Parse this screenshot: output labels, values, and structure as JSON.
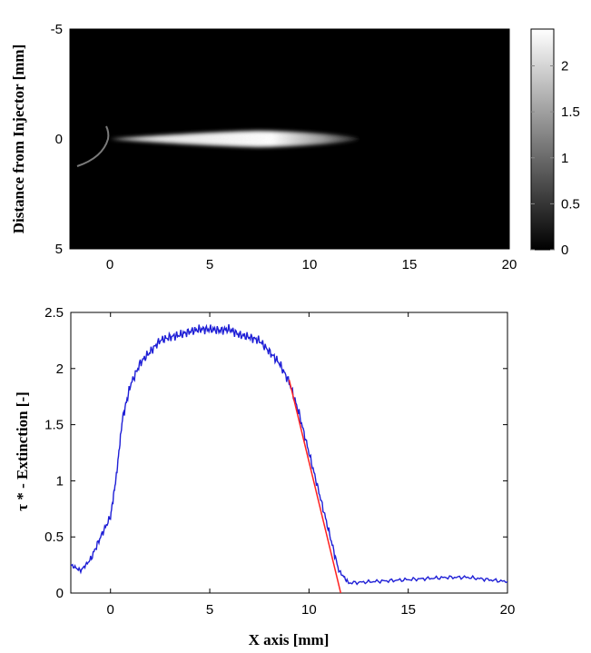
{
  "chart_data": [
    {
      "type": "heatmap",
      "title": "",
      "xlabel": "",
      "ylabel": "Distance from Injector [mm]",
      "xlim": [
        -2,
        20
      ],
      "ylim": [
        -5,
        5
      ],
      "y_reversed": true,
      "xticks": [
        "0",
        "5",
        "10",
        "15",
        "20"
      ],
      "xtick_values": [
        0,
        5,
        10,
        15,
        20
      ],
      "yticks": [
        "-5",
        "0",
        "5"
      ],
      "ytick_values": [
        -5,
        0,
        5
      ],
      "colorbar": {
        "ticks": [
          "0",
          "0.5",
          "1",
          "1.5",
          "2"
        ],
        "tick_values": [
          0,
          0.5,
          1,
          1.5,
          2
        ],
        "range": [
          0,
          2.4
        ],
        "colormap": "gray"
      },
      "spray": {
        "tip_x": 0,
        "peak_x": 7.5,
        "end_x": 12.5,
        "half_width_at_peak": 0.35,
        "peak_value": 2.35
      },
      "grid": false
    },
    {
      "type": "line",
      "title": "",
      "xlabel": "X axis [mm]",
      "ylabel": "τ * - Extinction [-]",
      "xlim": [
        -2,
        20
      ],
      "ylim": [
        0,
        2.5
      ],
      "xticks": [
        "0",
        "5",
        "10",
        "15",
        "20"
      ],
      "xtick_values": [
        0,
        5,
        10,
        15,
        20
      ],
      "yticks": [
        "0",
        "0.5",
        "1",
        "1.5",
        "2",
        "2.5"
      ],
      "ytick_values": [
        0,
        0.5,
        1,
        1.5,
        2,
        2.5
      ],
      "grid": false,
      "series": [
        {
          "color": "#1f1fd6",
          "x": [
            -2,
            -1.5,
            -1,
            -0.5,
            0,
            0.3,
            0.6,
            1,
            1.5,
            2,
            2.5,
            3,
            3.5,
            4,
            4.5,
            5,
            5.5,
            6,
            6.5,
            7,
            7.5,
            8,
            8.5,
            9,
            9.5,
            10,
            10.5,
            11,
            11.5,
            12,
            13,
            14,
            15,
            16,
            17,
            18,
            19,
            20
          ],
          "y": [
            0.25,
            0.2,
            0.3,
            0.5,
            0.68,
            1.05,
            1.55,
            1.85,
            2.05,
            2.15,
            2.25,
            2.28,
            2.3,
            2.33,
            2.35,
            2.35,
            2.34,
            2.35,
            2.3,
            2.28,
            2.25,
            2.15,
            2.05,
            1.88,
            1.6,
            1.25,
            0.9,
            0.55,
            0.2,
            0.09,
            0.1,
            0.11,
            0.12,
            0.13,
            0.14,
            0.14,
            0.12,
            0.1
          ]
        },
        {
          "color": "#ff2020",
          "x": [
            9,
            11.6
          ],
          "y": [
            1.9,
            0
          ]
        }
      ]
    }
  ]
}
